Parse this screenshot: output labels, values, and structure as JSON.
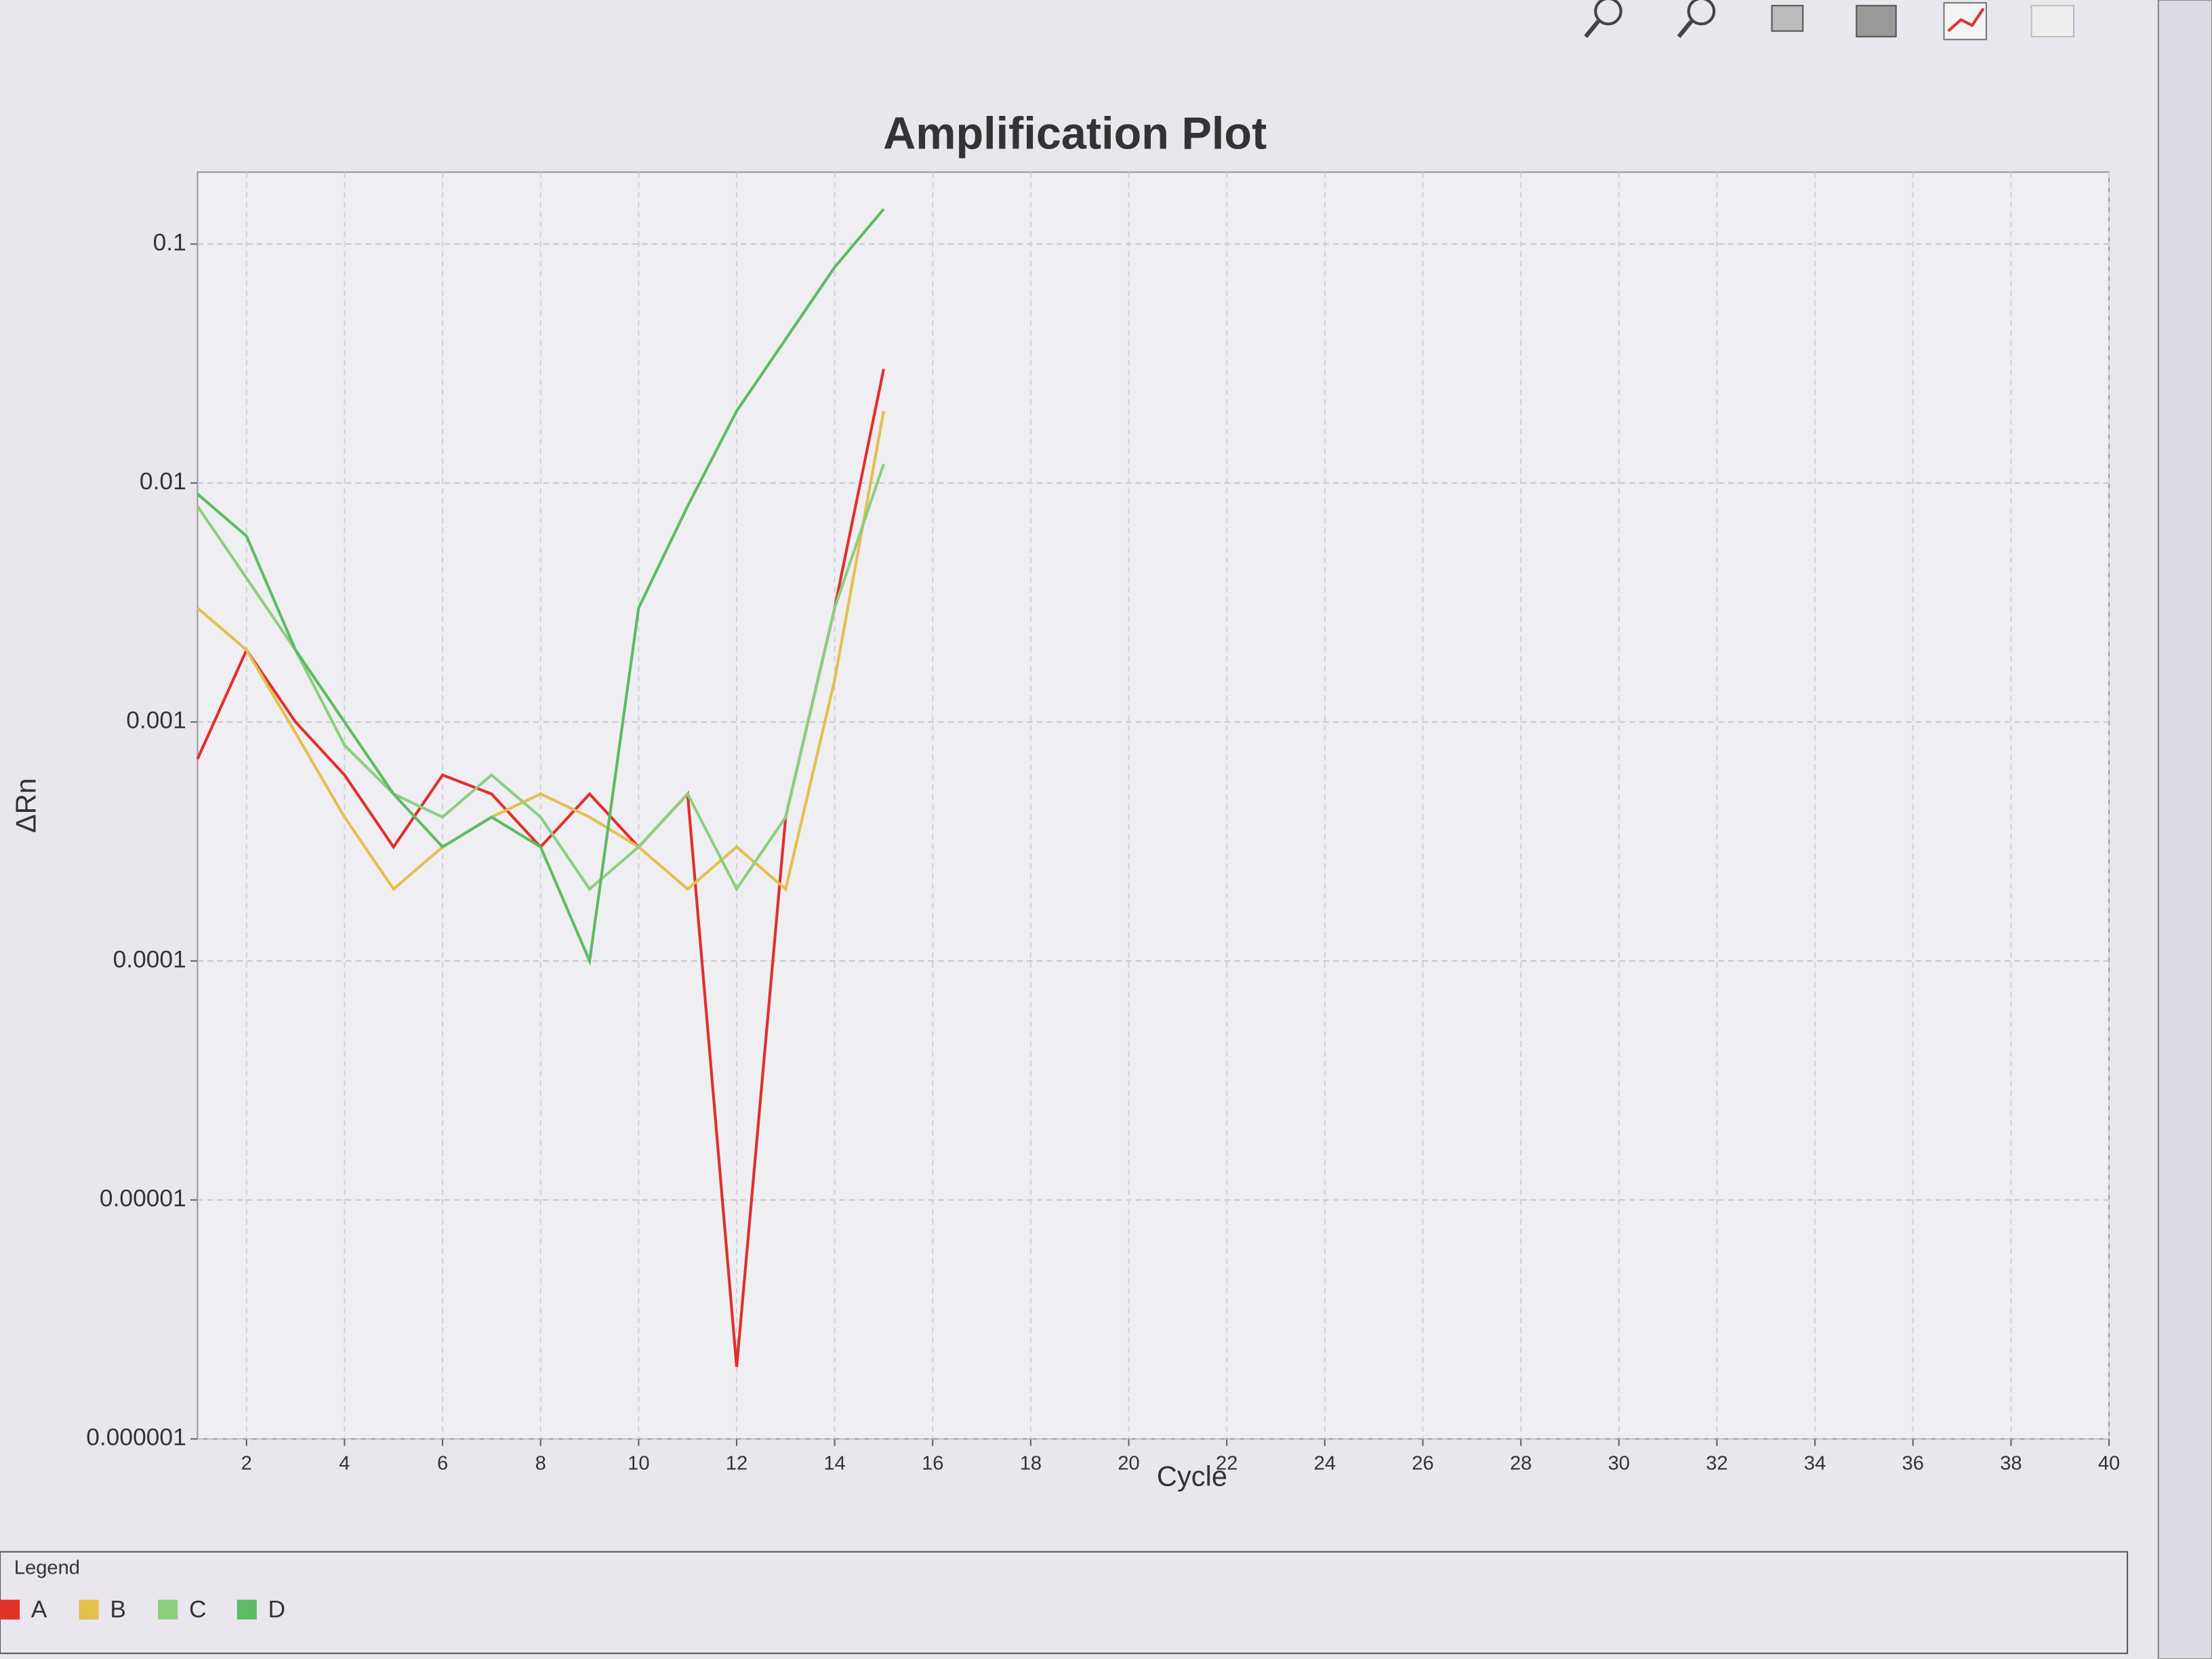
{
  "chart_data": {
    "type": "line",
    "title": "Amplification Plot",
    "x_label": "Cycle",
    "y_label": "ΔRn",
    "x": [
      1,
      2,
      3,
      4,
      5,
      6,
      7,
      8,
      9,
      10,
      11,
      12,
      13,
      14,
      15
    ],
    "series": [
      {
        "name": "A",
        "color": "#e0302a",
        "values": [
          0.0007,
          0.002,
          0.001,
          0.0006,
          0.0003,
          0.0006,
          0.0005,
          0.0003,
          0.0005,
          0.0003,
          0.0005,
          2e-06,
          0.0004,
          0.003,
          0.03
        ]
      },
      {
        "name": "B",
        "color": "#e3bf4e",
        "values": [
          0.003,
          0.002,
          0.0009,
          0.0004,
          0.0002,
          0.0003,
          0.0004,
          0.0005,
          0.0004,
          0.0003,
          0.0002,
          0.0003,
          0.0002,
          0.0015,
          0.02
        ]
      },
      {
        "name": "C",
        "color": "#8ccf7e",
        "values": [
          0.008,
          0.004,
          0.002,
          0.0008,
          0.0005,
          0.0004,
          0.0006,
          0.0004,
          0.0002,
          0.0003,
          0.0005,
          0.0002,
          0.0004,
          0.003,
          0.012
        ]
      },
      {
        "name": "D",
        "color": "#5dbb63",
        "values": [
          0.009,
          0.006,
          0.002,
          0.001,
          0.0005,
          0.0003,
          0.0004,
          0.0003,
          0.0001,
          0.003,
          0.008,
          0.02,
          0.04,
          0.08,
          0.14
        ]
      }
    ],
    "xlim": [
      1,
      40
    ],
    "xticks": [
      2,
      4,
      6,
      8,
      10,
      12,
      14,
      16,
      18,
      20,
      22,
      24,
      26,
      28,
      30,
      32,
      34,
      36,
      38,
      40
    ],
    "ylim": [
      1e-06,
      0.2
    ],
    "yticks": [
      1e-06,
      1e-05,
      0.0001,
      0.001,
      0.01,
      0.1
    ],
    "log_y": true,
    "grid": true,
    "legend_title": "Legend"
  }
}
